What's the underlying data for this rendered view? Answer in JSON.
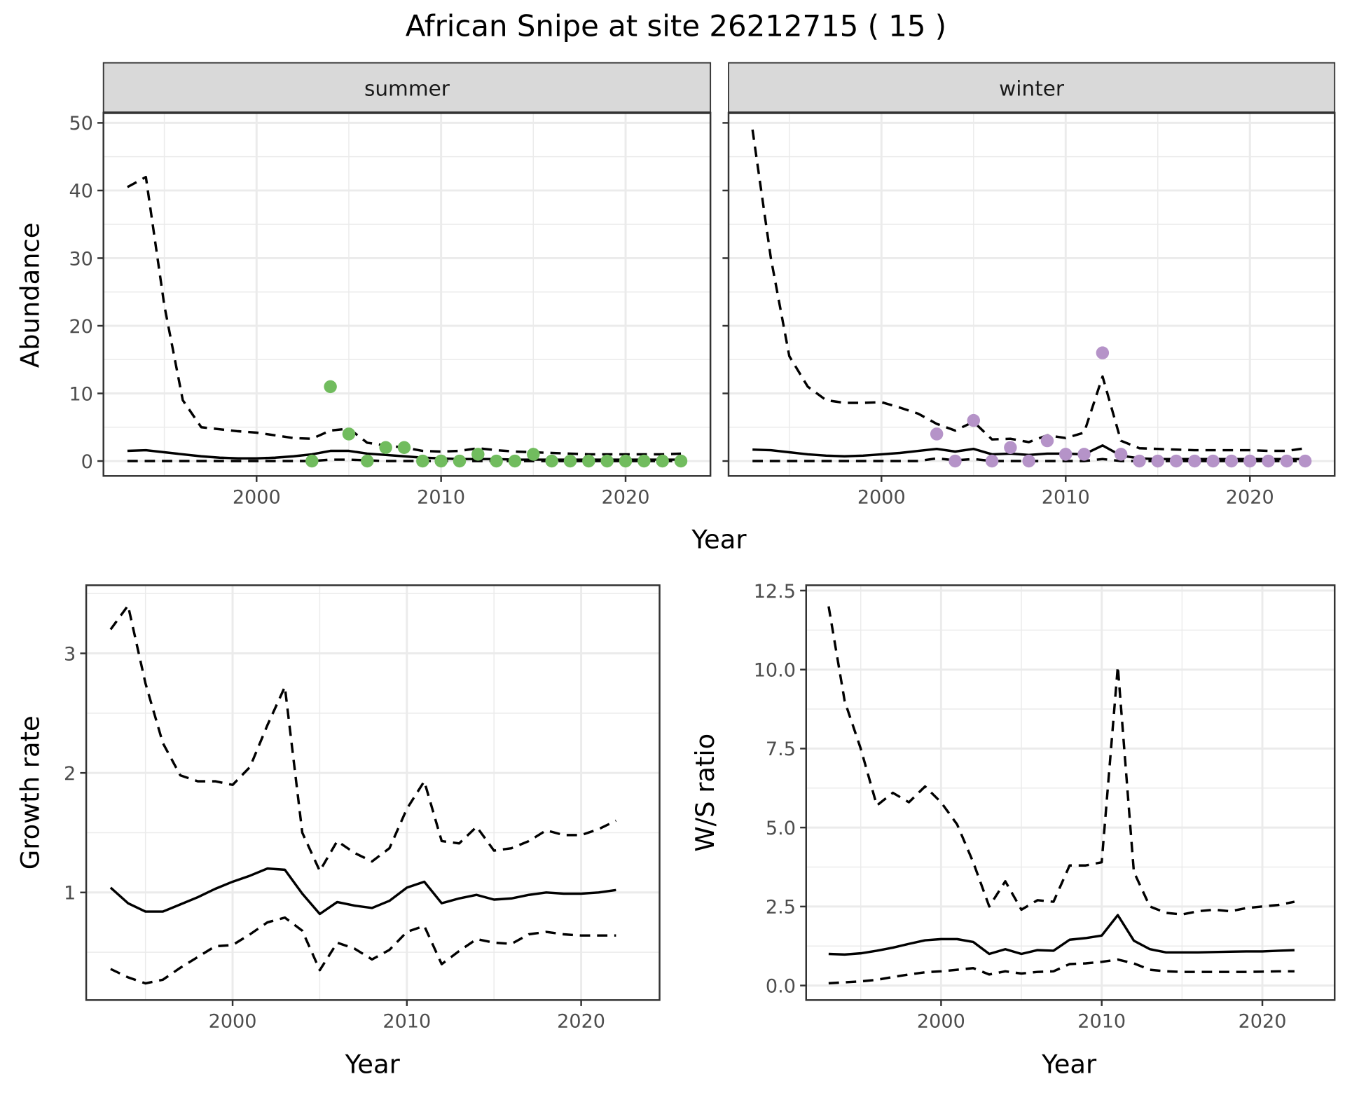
{
  "title": "African Snipe at site 26212715 ( 15 )",
  "colors": {
    "summer": "#71bc5e",
    "winter": "#b593c8",
    "line": "#000000",
    "grid": "#ebebeb",
    "strip": "#d9d9d9"
  },
  "chart_data": [
    {
      "id": "summer",
      "type": "line",
      "strip_label": "summer",
      "xlabel": "Year",
      "ylabel": "Abundance",
      "xlim": [
        1991.7,
        2024.6
      ],
      "ylim": [
        -2.2,
        51.5
      ],
      "x_ticks": [
        2000,
        2010,
        2020
      ],
      "x_tick_labels": [
        "2000",
        "2010",
        "2020"
      ],
      "y_ticks": [
        0,
        10,
        20,
        30,
        40,
        50
      ],
      "y_tick_labels": [
        "0",
        "10",
        "20",
        "30",
        "40",
        "50"
      ],
      "series": [
        {
          "name": "upper",
          "style": "dashed",
          "x_start": 1993,
          "values": [
            40.5,
            42,
            23,
            9,
            5,
            4.7,
            4.4,
            4.2,
            3.8,
            3.4,
            3.3,
            4.5,
            4.8,
            2.7,
            2.3,
            2.0,
            1.5,
            1.4,
            1.5,
            1.9,
            1.6,
            1.4,
            1.3,
            1.2,
            1.1,
            1.0,
            1.0,
            1.0,
            1.0,
            1.0,
            1.1
          ]
        },
        {
          "name": "mean",
          "style": "solid",
          "x_start": 1993,
          "values": [
            1.5,
            1.6,
            1.3,
            1.0,
            0.7,
            0.5,
            0.4,
            0.4,
            0.5,
            0.7,
            1.0,
            1.5,
            1.5,
            1.1,
            0.9,
            0.7,
            0.5,
            0.4,
            0.3,
            0.3,
            0.3,
            0.2,
            0.2,
            0.2,
            0.2,
            0.2,
            0.2,
            0.2,
            0.2,
            0.2,
            0.2
          ]
        },
        {
          "name": "lower",
          "style": "dashed",
          "x_start": 1993,
          "values": [
            0,
            0,
            0,
            0,
            0,
            0,
            0,
            0,
            0,
            0,
            0,
            0.2,
            0.2,
            0.1,
            0,
            0,
            0,
            0,
            0,
            0,
            0,
            0,
            0,
            0,
            0,
            0,
            0,
            0,
            0,
            0,
            0
          ]
        }
      ],
      "points": {
        "x_start": 2003,
        "values": [
          0,
          11,
          4,
          0,
          2,
          2,
          0,
          0,
          0,
          1,
          0,
          0,
          1,
          0,
          0,
          0,
          0,
          0,
          0,
          0,
          0
        ]
      }
    },
    {
      "id": "winter",
      "type": "line",
      "strip_label": "winter",
      "xlabel": "Year",
      "ylabel": "Abundance",
      "xlim": [
        1991.7,
        2024.6
      ],
      "ylim": [
        -2.2,
        51.5
      ],
      "x_ticks": [
        2000,
        2010,
        2020
      ],
      "x_tick_labels": [
        "2000",
        "2010",
        "2020"
      ],
      "y_ticks": [
        0,
        10,
        20,
        30,
        40,
        50
      ],
      "y_tick_labels": [],
      "series": [
        {
          "name": "upper",
          "style": "dashed",
          "x_start": 1993,
          "values": [
            49,
            30,
            15.5,
            11,
            9,
            8.6,
            8.6,
            8.7,
            7.9,
            7.0,
            5.5,
            4.5,
            5.8,
            3.2,
            3.3,
            2.8,
            3.8,
            3.4,
            4.2,
            12.5,
            3.0,
            1.9,
            1.8,
            1.7,
            1.6,
            1.6,
            1.6,
            1.6,
            1.5,
            1.5,
            1.9
          ]
        },
        {
          "name": "mean",
          "style": "solid",
          "x_start": 1993,
          "values": [
            1.7,
            1.6,
            1.3,
            1.0,
            0.8,
            0.7,
            0.8,
            1.0,
            1.2,
            1.5,
            1.8,
            1.4,
            1.8,
            1.0,
            1.1,
            0.9,
            1.1,
            1.1,
            1.0,
            2.3,
            0.8,
            0.4,
            0.3,
            0.3,
            0.3,
            0.3,
            0.3,
            0.3,
            0.3,
            0.3,
            0.3
          ]
        },
        {
          "name": "lower",
          "style": "dashed",
          "x_start": 1993,
          "values": [
            0,
            0,
            0,
            0,
            0,
            0,
            0,
            0,
            0,
            0,
            0.4,
            0.1,
            0.3,
            0,
            0,
            0,
            0,
            0,
            0,
            0.3,
            0,
            0,
            0,
            0,
            0,
            0,
            0,
            0,
            0,
            0,
            0
          ]
        }
      ],
      "points": {
        "x_start": 2003,
        "values": [
          4,
          0,
          6,
          0,
          2,
          0,
          3,
          1,
          1,
          16,
          1,
          0,
          0,
          0,
          0,
          0,
          0,
          0,
          0,
          0,
          0
        ]
      }
    },
    {
      "id": "growth",
      "type": "line",
      "xlabel": "Year",
      "ylabel": "Growth rate",
      "xlim": [
        1991.6,
        2024.5
      ],
      "ylim": [
        0.1,
        3.57
      ],
      "x_ticks": [
        2000,
        2010,
        2020
      ],
      "x_tick_labels": [
        "2000",
        "2010",
        "2020"
      ],
      "y_ticks": [
        1,
        2,
        3
      ],
      "y_tick_labels": [
        "1",
        "2",
        "3"
      ],
      "series": [
        {
          "name": "upper",
          "style": "dashed",
          "x_start": 1993,
          "values": [
            3.2,
            3.4,
            2.75,
            2.25,
            1.98,
            1.93,
            1.93,
            1.9,
            2.05,
            2.4,
            2.72,
            1.5,
            1.18,
            1.43,
            1.33,
            1.26,
            1.37,
            1.7,
            1.93,
            1.43,
            1.41,
            1.55,
            1.35,
            1.37,
            1.43,
            1.52,
            1.48,
            1.48,
            1.53,
            1.6
          ]
        },
        {
          "name": "mean",
          "style": "solid",
          "x_start": 1993,
          "values": [
            1.04,
            0.91,
            0.84,
            0.84,
            0.9,
            0.96,
            1.03,
            1.09,
            1.14,
            1.2,
            1.19,
            0.99,
            0.82,
            0.92,
            0.89,
            0.87,
            0.93,
            1.04,
            1.09,
            0.91,
            0.95,
            0.98,
            0.94,
            0.95,
            0.98,
            1.0,
            0.99,
            0.99,
            1.0,
            1.02
          ]
        },
        {
          "name": "lower",
          "style": "dashed",
          "x_start": 1993,
          "values": [
            0.36,
            0.29,
            0.24,
            0.27,
            0.37,
            0.46,
            0.55,
            0.56,
            0.65,
            0.75,
            0.79,
            0.68,
            0.35,
            0.58,
            0.53,
            0.44,
            0.52,
            0.67,
            0.72,
            0.4,
            0.51,
            0.61,
            0.58,
            0.57,
            0.65,
            0.67,
            0.65,
            0.64,
            0.64,
            0.64
          ]
        }
      ]
    },
    {
      "id": "ws",
      "type": "line",
      "xlabel": "Year",
      "ylabel": "W/S ratio",
      "xlim": [
        1991.6,
        2024.5
      ],
      "ylim": [
        -0.46,
        12.67
      ],
      "x_ticks": [
        2000,
        2010,
        2020
      ],
      "x_tick_labels": [
        "2000",
        "2010",
        "2020"
      ],
      "y_ticks": [
        0,
        2.5,
        5,
        7.5,
        10,
        12.5
      ],
      "y_tick_labels": [
        "0.0",
        "2.5",
        "5.0",
        "7.5",
        "10.0",
        "12.5"
      ],
      "series": [
        {
          "name": "upper",
          "style": "dashed",
          "x_start": 1993,
          "values": [
            12.0,
            9.0,
            7.5,
            5.7,
            6.1,
            5.8,
            6.3,
            5.8,
            5.1,
            3.9,
            2.5,
            3.3,
            2.4,
            2.7,
            2.65,
            3.8,
            3.8,
            3.9,
            10.1,
            3.6,
            2.5,
            2.3,
            2.25,
            2.35,
            2.4,
            2.35,
            2.45,
            2.5,
            2.55,
            2.65
          ]
        },
        {
          "name": "mean",
          "style": "solid",
          "x_start": 1993,
          "values": [
            1.0,
            0.98,
            1.02,
            1.1,
            1.2,
            1.32,
            1.43,
            1.47,
            1.47,
            1.38,
            1.0,
            1.15,
            1.0,
            1.12,
            1.1,
            1.45,
            1.5,
            1.58,
            2.23,
            1.42,
            1.15,
            1.05,
            1.05,
            1.05,
            1.06,
            1.07,
            1.08,
            1.08,
            1.1,
            1.12
          ]
        },
        {
          "name": "lower",
          "style": "dashed",
          "x_start": 1993,
          "values": [
            0.07,
            0.1,
            0.13,
            0.18,
            0.27,
            0.35,
            0.42,
            0.45,
            0.5,
            0.55,
            0.35,
            0.45,
            0.38,
            0.43,
            0.45,
            0.68,
            0.7,
            0.75,
            0.82,
            0.7,
            0.5,
            0.45,
            0.43,
            0.43,
            0.43,
            0.43,
            0.43,
            0.44,
            0.45,
            0.45
          ]
        }
      ]
    }
  ]
}
